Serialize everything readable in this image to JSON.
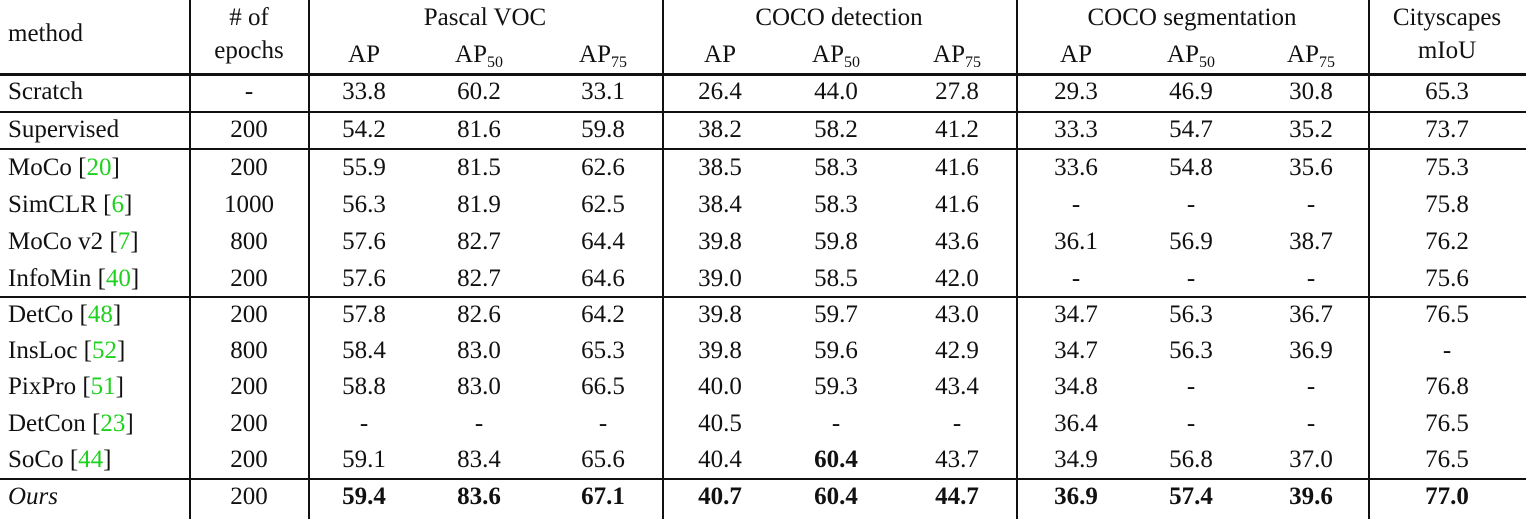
{
  "table": {
    "header": {
      "method": "method",
      "epochs_line1": "# of",
      "epochs_line2": "epochs",
      "groups": [
        "Pascal VOC",
        "COCO detection",
        "COCO segmentation",
        "Cityscapes"
      ],
      "cityscapes_metric": "mIoU",
      "ap": "AP",
      "ap_prefix": "AP",
      "sub50": "50",
      "sub75": "75"
    },
    "rows": [
      {
        "name": "Scratch",
        "ref": "",
        "epochs": "-",
        "values": [
          "33.8",
          "60.2",
          "33.1",
          "26.4",
          "44.0",
          "27.8",
          "29.3",
          "46.9",
          "30.8",
          "65.3"
        ],
        "bold": [],
        "italic": false
      },
      {
        "name": "Supervised",
        "ref": "",
        "epochs": "200",
        "values": [
          "54.2",
          "81.6",
          "59.8",
          "38.2",
          "58.2",
          "41.2",
          "33.3",
          "54.7",
          "35.2",
          "73.7"
        ],
        "bold": [],
        "italic": false
      },
      {
        "name": "MoCo",
        "ref": "20",
        "epochs": "200",
        "values": [
          "55.9",
          "81.5",
          "62.6",
          "38.5",
          "58.3",
          "41.6",
          "33.6",
          "54.8",
          "35.6",
          "75.3"
        ],
        "bold": [],
        "italic": false
      },
      {
        "name": "SimCLR",
        "ref": "6",
        "epochs": "1000",
        "values": [
          "56.3",
          "81.9",
          "62.5",
          "38.4",
          "58.3",
          "41.6",
          "-",
          "-",
          "-",
          "75.8"
        ],
        "bold": [],
        "italic": false
      },
      {
        "name": "MoCo v2",
        "ref": "7",
        "epochs": "800",
        "values": [
          "57.6",
          "82.7",
          "64.4",
          "39.8",
          "59.8",
          "43.6",
          "36.1",
          "56.9",
          "38.7",
          "76.2"
        ],
        "bold": [],
        "italic": false
      },
      {
        "name": "InfoMin",
        "ref": "40",
        "epochs": "200",
        "values": [
          "57.6",
          "82.7",
          "64.6",
          "39.0",
          "58.5",
          "42.0",
          "-",
          "-",
          "-",
          "75.6"
        ],
        "bold": [],
        "italic": false
      },
      {
        "name": "DetCo",
        "ref": "48",
        "epochs": "200",
        "values": [
          "57.8",
          "82.6",
          "64.2",
          "39.8",
          "59.7",
          "43.0",
          "34.7",
          "56.3",
          "36.7",
          "76.5"
        ],
        "bold": [],
        "italic": false
      },
      {
        "name": "InsLoc",
        "ref": "52",
        "epochs": "800",
        "values": [
          "58.4",
          "83.0",
          "65.3",
          "39.8",
          "59.6",
          "42.9",
          "34.7",
          "56.3",
          "36.9",
          "-"
        ],
        "bold": [],
        "italic": false
      },
      {
        "name": "PixPro",
        "ref": "51",
        "epochs": "200",
        "values": [
          "58.8",
          "83.0",
          "66.5",
          "40.0",
          "59.3",
          "43.4",
          "34.8",
          "-",
          "-",
          "76.8"
        ],
        "bold": [],
        "italic": false
      },
      {
        "name": "DetCon",
        "ref": "23",
        "epochs": "200",
        "values": [
          "-",
          "-",
          "-",
          "40.5",
          "-",
          "-",
          "36.4",
          "-",
          "-",
          "76.5"
        ],
        "bold": [],
        "italic": false
      },
      {
        "name": "SoCo",
        "ref": "44",
        "epochs": "200",
        "values": [
          "59.1",
          "83.4",
          "65.6",
          "40.4",
          "60.4",
          "43.7",
          "34.9",
          "56.8",
          "37.0",
          "76.5"
        ],
        "bold": [
          4
        ],
        "italic": false
      },
      {
        "name": "Ours",
        "ref": "",
        "epochs": "200",
        "values": [
          "59.4",
          "83.6",
          "67.1",
          "40.7",
          "60.4",
          "44.7",
          "36.9",
          "57.4",
          "39.6",
          "77.0"
        ],
        "bold": [
          0,
          1,
          2,
          3,
          4,
          5,
          6,
          7,
          8,
          9
        ],
        "italic": true
      }
    ]
  },
  "colors": {
    "text": "#111111",
    "reference_link": "#1fd11f",
    "rules": "#111111"
  }
}
